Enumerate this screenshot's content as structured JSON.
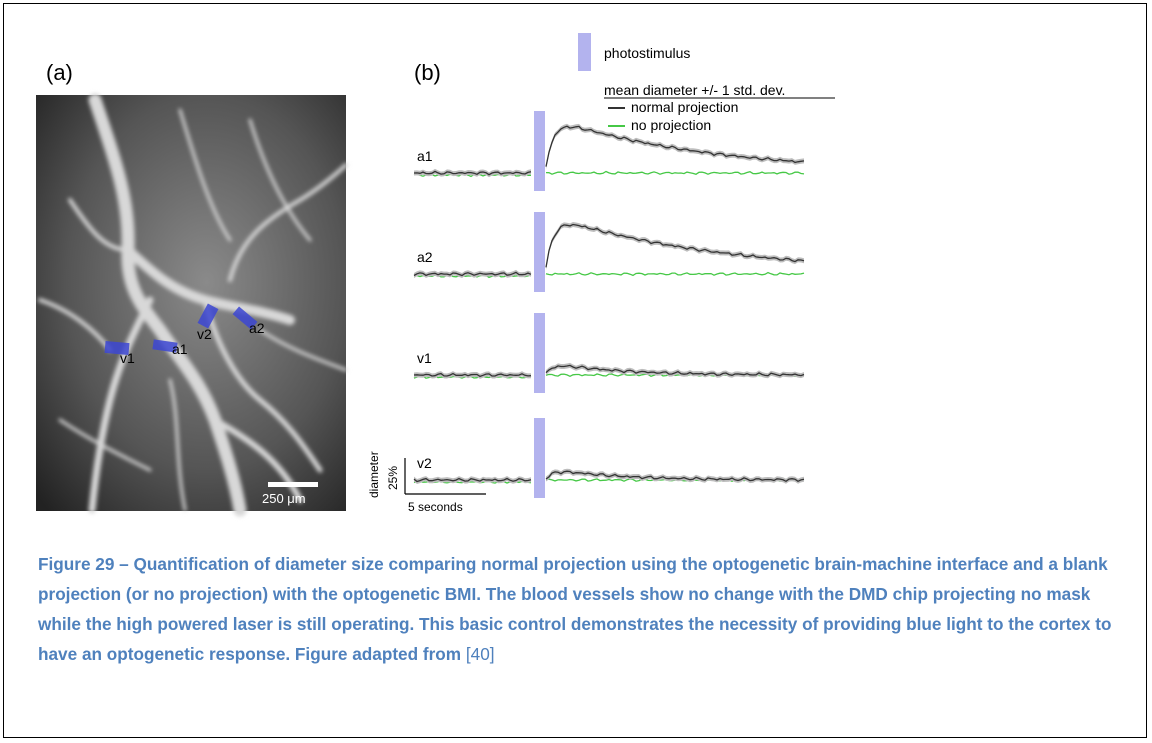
{
  "panel_a": {
    "label": "(a)",
    "scale_bar_label": "250 μm",
    "vessel_labels": [
      "v1",
      "a1",
      "v2",
      "a2"
    ]
  },
  "panel_b": {
    "label": "(b)",
    "legend": {
      "stimulus_label": "photostimulus",
      "title": "mean diameter +/- 1 std. dev.",
      "series": [
        "normal projection",
        "no projection"
      ]
    },
    "trace_labels": [
      "a1",
      "a2",
      "v1",
      "v2"
    ],
    "scale_bar": {
      "y_label": "diameter",
      "y_value": "25%",
      "x_label": "5 seconds"
    }
  },
  "colors": {
    "stimulus": "#b3b3ee",
    "normal_projection": "#333333",
    "normal_projection_band": "#bdbdbd",
    "no_projection": "#46c846",
    "vessel_marker": "#3c46d2",
    "caption": "#4f81bd"
  },
  "chart_data": {
    "type": "line",
    "title": "",
    "xlabel": "5 seconds",
    "ylabel": "diameter 25%",
    "series": [
      {
        "name": "normal projection",
        "traces": [
          {
            "vessel": "a1",
            "peak": 0.95,
            "decay": 0.55
          },
          {
            "vessel": "a2",
            "peak": 1.0,
            "decay": 0.5
          },
          {
            "vessel": "v1",
            "peak": 0.22,
            "decay": 0.9
          },
          {
            "vessel": "v2",
            "peak": 0.2,
            "decay": 0.9
          }
        ]
      },
      {
        "name": "no projection",
        "traces": [
          {
            "vessel": "a1",
            "peak": 0.0
          },
          {
            "vessel": "a2",
            "peak": 0.0
          },
          {
            "vessel": "v1",
            "peak": 0.0
          },
          {
            "vessel": "v2",
            "peak": 0.0
          }
        ]
      }
    ]
  },
  "caption": {
    "text": "Figure 29 – Quantification of diameter size comparing normal projection using the optogenetic brain-machine interface and a blank projection (or no projection) with the optogenetic BMI. The blood vessels show no change with the DMD chip projecting no mask while the high powered laser is still operating. This basic control demonstrates the necessity of providing blue light to the cortex to have an optogenetic response. Figure adapted from",
    "reference": "[40]"
  }
}
